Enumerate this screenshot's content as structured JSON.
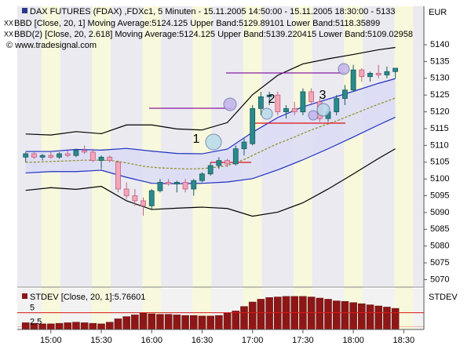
{
  "chart_data": [
    {
      "type": "candlestick",
      "title": "DAX FUTURES (FDAX) ,FDXc1, 5 Minuten - 15.11.2005 14:50:00 - 15.11.2005 18:30:00 - 5133",
      "subtitles": [
        "BBD [Close, 20, 1] Moving Average:5124.125 Upper Band:5129.89101 Lower Band:5118.35899",
        "BBD(2) [Close, 20, 2.618] Moving Average:5124.125 Upper Band:5139.220415 Lower Band:5109.02958"
      ],
      "source": "© www.tradesignal.com",
      "y_axis_label": "EUR",
      "annotations": [
        "1",
        "2",
        "3"
      ],
      "up_color": "#2a8a8c",
      "down_color": "#f4a6b8",
      "x": [
        885,
        890,
        895,
        900,
        905,
        910,
        915,
        920,
        925,
        930,
        935,
        940,
        945,
        950,
        955,
        960,
        965,
        970,
        975,
        980,
        985,
        990,
        995,
        1000,
        1005,
        1010,
        1015,
        1020,
        1025,
        1030,
        1035,
        1040,
        1045,
        1050,
        1055,
        1060,
        1065,
        1070,
        1075,
        1080,
        1085,
        1090,
        1095,
        1100,
        1105
      ],
      "open": [
        5106.5,
        5107.5,
        5106.5,
        5107,
        5106.5,
        5107.5,
        5107,
        5108.5,
        5108,
        5105.5,
        5106.5,
        5105,
        5097,
        5095,
        5093.5,
        5092,
        5096.5,
        5099,
        5098.5,
        5099,
        5097,
        5099.5,
        5101.5,
        5104,
        5105.5,
        5104.5,
        5109,
        5110.5,
        5121,
        5124.5,
        5125,
        5120,
        5121,
        5120,
        5126,
        5123,
        5118,
        5120,
        5124,
        5126.5,
        5132.5,
        5130.5,
        5131.5,
        5131,
        5132
      ],
      "high": [
        5108,
        5108,
        5107.5,
        5108,
        5108,
        5108.5,
        5109,
        5110,
        5109,
        5107,
        5107,
        5105.5,
        5099,
        5097,
        5094.5,
        5097,
        5100,
        5100,
        5099.5,
        5100,
        5100,
        5102,
        5105,
        5106.5,
        5106,
        5110,
        5112,
        5122,
        5126,
        5126,
        5126,
        5122,
        5123,
        5127,
        5127,
        5124,
        5121,
        5125,
        5128,
        5134,
        5133,
        5132,
        5134,
        5133.5,
        5133
      ],
      "low": [
        5105,
        5106,
        5105.5,
        5106,
        5106,
        5106.5,
        5106.5,
        5107.5,
        5105,
        5103,
        5105,
        5096,
        5094,
        5092,
        5089,
        5091,
        5096,
        5098,
        5096,
        5096,
        5095,
        5099,
        5101,
        5103,
        5103.5,
        5104,
        5107,
        5110,
        5119,
        5122,
        5119,
        5118,
        5119,
        5119,
        5122,
        5117,
        5117,
        5119,
        5122,
        5126,
        5129,
        5129,
        5130,
        5130,
        5130
      ],
      "close": [
        5107.5,
        5106.5,
        5107,
        5106.5,
        5107.5,
        5107,
        5108.5,
        5108,
        5105.5,
        5106.5,
        5105.5,
        5097,
        5095,
        5093.5,
        5092,
        5096.5,
        5099,
        5098.5,
        5099,
        5097,
        5099.5,
        5101.5,
        5104,
        5105.5,
        5104.5,
        5109,
        5111,
        5121,
        5124.5,
        5125,
        5120,
        5121,
        5120,
        5126,
        5123,
        5118,
        5120,
        5124,
        5126.5,
        5132.5,
        5130.5,
        5131.5,
        5131,
        5132,
        5133
      ],
      "series": [
        {
          "color": "#8c8c1e",
          "dash": true,
          "x": [
            885,
            890,
            895,
            900,
            905,
            910,
            915,
            920,
            925,
            930,
            935,
            940,
            945,
            950,
            955,
            960,
            965,
            970,
            975,
            980,
            985,
            990,
            995,
            1000,
            1005,
            1010,
            1015,
            1020,
            1025,
            1030,
            1035,
            1040,
            1045,
            1050,
            1055,
            1060,
            1065,
            1070,
            1075,
            1080,
            1085,
            1090,
            1095,
            1100,
            1105
          ],
          "values": [
            5105.0,
            5105.0,
            5105.1,
            5105.2,
            5105.3,
            5105.4,
            5105.5,
            5105.6,
            5105.6,
            5105.6,
            5105.5,
            5105.2,
            5104.8,
            5104.3,
            5103.8,
            5103.5,
            5103.3,
            5103.2,
            5103.1,
            5103.0,
            5103.0,
            5103.1,
            5103.3,
            5103.6,
            5104.0,
            5104.8,
            5105.8,
            5107.0,
            5108.2,
            5109.4,
            5110.5,
            5111.5,
            5112.5,
            5113.6,
            5114.6,
            5115.5,
            5116.4,
            5117.3,
            5118.3,
            5119.3,
            5120.3,
            5121.3,
            5122.3,
            5123.2,
            5124.125
          ]
        },
        {
          "color": "#1f2fc0",
          "fill": "#dadcf6",
          "x": [
            885,
            900,
            915,
            930,
            945,
            960,
            975,
            990,
            1005,
            1020,
            1035,
            1050,
            1065,
            1080,
            1095,
            1105
          ],
          "values": [
            5108.2,
            5108.2,
            5108.8,
            5108.6,
            5109.1,
            5108.3,
            5107.6,
            5107.5,
            5108.9,
            5113.9,
            5118.3,
            5121.5,
            5123.8,
            5126.1,
            5128.5,
            5129.9
          ]
        },
        {
          "color": "#1f2fc0",
          "fill": "#dadcf6",
          "x": [
            885,
            900,
            915,
            930,
            945,
            960,
            975,
            990,
            1005,
            1020,
            1035,
            1050,
            1065,
            1080,
            1095,
            1105
          ],
          "values": [
            5101.8,
            5102.2,
            5102.2,
            5102.6,
            5100.5,
            5098.7,
            5098.6,
            5098.7,
            5099.1,
            5100.1,
            5102.7,
            5105.7,
            5109.0,
            5112.5,
            5116.1,
            5118.4
          ]
        },
        {
          "color": "#000000",
          "x": [
            885,
            900,
            915,
            930,
            945,
            960,
            975,
            990,
            1005,
            1020,
            1035,
            1050,
            1065,
            1080,
            1095,
            1105
          ],
          "values": [
            5113.4,
            5113.1,
            5114.1,
            5113.5,
            5116.1,
            5116.1,
            5114.9,
            5114.6,
            5116.8,
            5125.1,
            5130.9,
            5134.3,
            5135.8,
            5137.1,
            5138.5,
            5139.2
          ]
        },
        {
          "color": "#000000",
          "x": [
            885,
            900,
            915,
            930,
            945,
            960,
            975,
            990,
            1005,
            1020,
            1035,
            1050,
            1065,
            1080,
            1095,
            1105
          ],
          "values": [
            5096.6,
            5097.4,
            5096.9,
            5097.8,
            5093.5,
            5090.9,
            5091.3,
            5091.6,
            5091.2,
            5088.9,
            5090.1,
            5092.9,
            5097.0,
            5101.5,
            5106.1,
            5109.0
          ]
        }
      ],
      "xlim": [
        880,
        1122
      ],
      "xticks": [
        {
          "value": 900,
          "label": "15:00"
        },
        {
          "value": 930,
          "label": "15:30"
        },
        {
          "value": 960,
          "label": "16:00"
        },
        {
          "value": 990,
          "label": "16:30"
        },
        {
          "value": 1020,
          "label": "17:00"
        },
        {
          "value": 1050,
          "label": "17:30"
        },
        {
          "value": 1080,
          "label": "18:00"
        },
        {
          "value": 1110,
          "label": "18:30"
        }
      ],
      "ylim": [
        5068,
        5151
      ],
      "yticks": [
        5070,
        5075,
        5080,
        5085,
        5090,
        5095,
        5100,
        5105,
        5110,
        5115,
        5120,
        5125,
        5130,
        5135,
        5140
      ]
    },
    {
      "type": "bar",
      "title": "STDEV [Close, 20, 1]:5.76601",
      "y_axis_label": "STDEV",
      "color": "#8e1616",
      "line_color": "#d81818",
      "x": [
        885,
        890,
        895,
        900,
        905,
        910,
        915,
        920,
        925,
        930,
        935,
        940,
        945,
        950,
        955,
        960,
        965,
        970,
        975,
        980,
        985,
        990,
        995,
        1000,
        1005,
        1010,
        1015,
        1020,
        1025,
        1030,
        1035,
        1040,
        1045,
        1050,
        1055,
        1060,
        1065,
        1070,
        1075,
        1080,
        1085,
        1090,
        1095,
        1100,
        1105
      ],
      "values": [
        3.2,
        3.1,
        3.0,
        3.0,
        3.1,
        3.2,
        3.3,
        3.2,
        3.1,
        3.0,
        3.3,
        3.9,
        4.3,
        4.6,
        4.9,
        4.8,
        4.7,
        4.7,
        4.6,
        4.5,
        4.5,
        4.4,
        4.4,
        4.5,
        4.9,
        5.3,
        6.1,
        6.9,
        7.4,
        7.7,
        7.8,
        7.9,
        7.9,
        7.9,
        7.8,
        7.6,
        7.4,
        7.1,
        7.0,
        6.8,
        6.6,
        6.4,
        6.2,
        6.0,
        5.77
      ],
      "xlim": [
        880,
        1122
      ],
      "ylim": [
        2,
        9
      ],
      "yticks": [
        2.5,
        5
      ]
    }
  ]
}
